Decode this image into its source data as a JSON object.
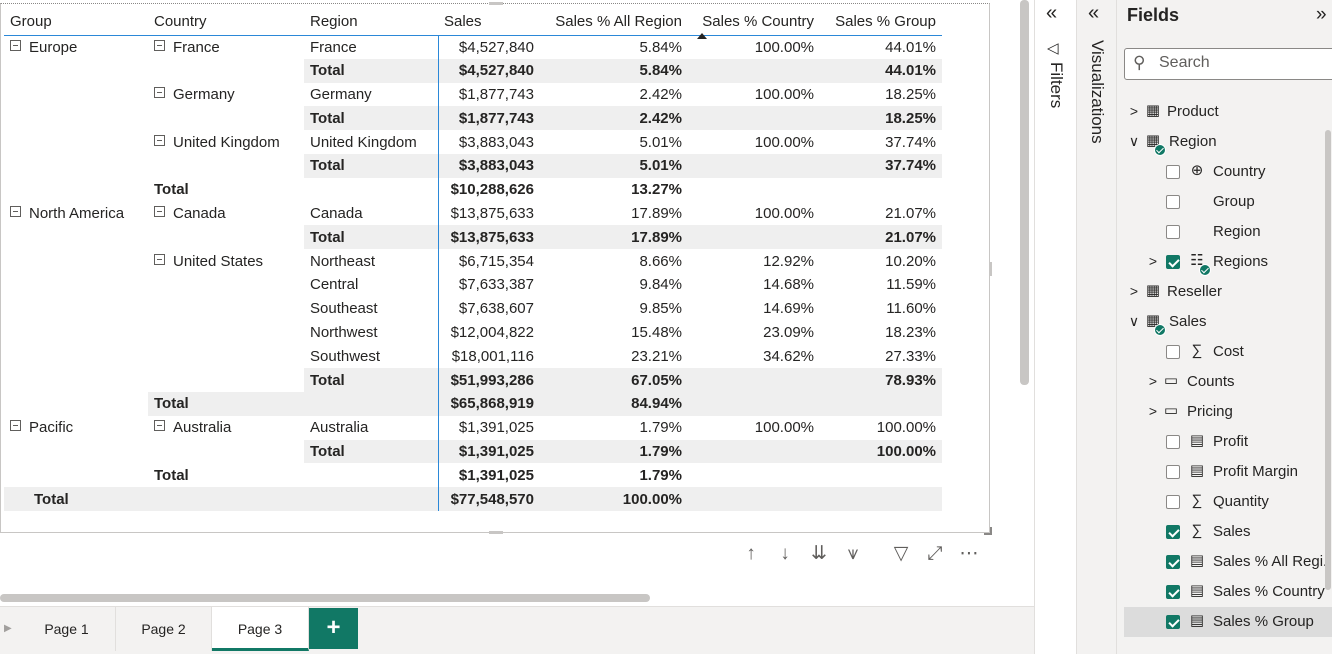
{
  "matrix": {
    "headers": {
      "group": "Group",
      "country": "Country",
      "region": "Region",
      "sales": "Sales",
      "pct_all": "Sales % All Region",
      "pct_country": "Sales % Country",
      "pct_group": "Sales % Group"
    },
    "rows": [
      {
        "group": "Europe",
        "country": "France",
        "region": "France",
        "sales": "$4,527,840",
        "pct_all": "5.84%",
        "pct_country": "100.00%",
        "pct_group": "44.01%"
      },
      {
        "region": "Total",
        "sales": "$4,527,840",
        "pct_all": "5.84%",
        "pct_country": "",
        "pct_group": "44.01%"
      },
      {
        "country": "Germany",
        "region": "Germany",
        "sales": "$1,877,743",
        "pct_all": "2.42%",
        "pct_country": "100.00%",
        "pct_group": "18.25%"
      },
      {
        "region": "Total",
        "sales": "$1,877,743",
        "pct_all": "2.42%",
        "pct_country": "",
        "pct_group": "18.25%"
      },
      {
        "country": "United Kingdom",
        "region": "United Kingdom",
        "sales": "$3,883,043",
        "pct_all": "5.01%",
        "pct_country": "100.00%",
        "pct_group": "37.74%"
      },
      {
        "region": "Total",
        "sales": "$3,883,043",
        "pct_all": "5.01%",
        "pct_country": "",
        "pct_group": "37.74%"
      },
      {
        "country": "Total",
        "sales": "$10,288,626",
        "pct_all": "13.27%",
        "pct_country": "",
        "pct_group": ""
      },
      {
        "group": "North America",
        "country": "Canada",
        "region": "Canada",
        "sales": "$13,875,633",
        "pct_all": "17.89%",
        "pct_country": "100.00%",
        "pct_group": "21.07%"
      },
      {
        "region": "Total",
        "sales": "$13,875,633",
        "pct_all": "17.89%",
        "pct_country": "",
        "pct_group": "21.07%"
      },
      {
        "country": "United States",
        "region": "Northeast",
        "sales": "$6,715,354",
        "pct_all": "8.66%",
        "pct_country": "12.92%",
        "pct_group": "10.20%"
      },
      {
        "region": "Central",
        "sales": "$7,633,387",
        "pct_all": "9.84%",
        "pct_country": "14.68%",
        "pct_group": "11.59%"
      },
      {
        "region": "Southeast",
        "sales": "$7,638,607",
        "pct_all": "9.85%",
        "pct_country": "14.69%",
        "pct_group": "11.60%"
      },
      {
        "region": "Northwest",
        "sales": "$12,004,822",
        "pct_all": "15.48%",
        "pct_country": "23.09%",
        "pct_group": "18.23%"
      },
      {
        "region": "Southwest",
        "sales": "$18,001,116",
        "pct_all": "23.21%",
        "pct_country": "34.62%",
        "pct_group": "27.33%"
      },
      {
        "region": "Total",
        "sales": "$51,993,286",
        "pct_all": "67.05%",
        "pct_country": "",
        "pct_group": "78.93%"
      },
      {
        "country": "Total",
        "sales": "$65,868,919",
        "pct_all": "84.94%",
        "pct_country": "",
        "pct_group": ""
      },
      {
        "group": "Pacific",
        "country": "Australia",
        "region": "Australia",
        "sales": "$1,391,025",
        "pct_all": "1.79%",
        "pct_country": "100.00%",
        "pct_group": "100.00%"
      },
      {
        "region": "Total",
        "sales": "$1,391,025",
        "pct_all": "1.79%",
        "pct_country": "",
        "pct_group": "100.00%"
      },
      {
        "country": "Total",
        "sales": "$1,391,025",
        "pct_all": "1.79%",
        "pct_country": "",
        "pct_group": ""
      },
      {
        "group": "Total",
        "sales": "$77,548,570",
        "pct_all": "100.00%",
        "pct_country": "",
        "pct_group": ""
      }
    ]
  },
  "visual_toolbar": {
    "icons": [
      "arrow-up-icon",
      "arrow-down-icon",
      "double-arrow-down-icon",
      "expand-hierarchy-icon",
      "filter-icon",
      "focus-mode-icon",
      "more-options-icon"
    ],
    "glyphs": [
      "↑",
      "↓",
      "⇊",
      "⩛",
      "▽",
      "⤢",
      "⋯"
    ]
  },
  "pages": {
    "tabs": [
      "Page 1",
      "Page 2",
      "Page 3"
    ],
    "active": "Page 3",
    "add_label": "+"
  },
  "filters_pane": {
    "label": "Filters",
    "collapse_glyph": "«"
  },
  "viz_pane": {
    "label": "Visualizations",
    "collapse_glyph": "«"
  },
  "fields_pane": {
    "title": "Fields",
    "expand_glyph": "»",
    "search_placeholder": "Search",
    "items": [
      {
        "label": "Product",
        "kind": "table",
        "chevron": ">",
        "level": 0,
        "checked": false
      },
      {
        "label": "Region",
        "kind": "table",
        "chevron": "∨",
        "level": 0,
        "checked": true
      },
      {
        "label": "Country",
        "kind": "globe",
        "level": 1,
        "checked": false
      },
      {
        "label": "Group",
        "kind": "none",
        "level": 1,
        "checked": false
      },
      {
        "label": "Region",
        "kind": "none",
        "level": 1,
        "checked": false
      },
      {
        "label": "Regions",
        "kind": "hierarchy",
        "chevron": ">",
        "level": 1,
        "checked": true
      },
      {
        "label": "Reseller",
        "kind": "table",
        "chevron": ">",
        "level": 0,
        "checked": false
      },
      {
        "label": "Sales",
        "kind": "table",
        "chevron": "∨",
        "level": 0,
        "checked": true
      },
      {
        "label": "Cost",
        "kind": "sigma",
        "level": 1,
        "checked": false
      },
      {
        "label": "Counts",
        "kind": "folder",
        "chevron": ">",
        "level": 1,
        "checked": false
      },
      {
        "label": "Pricing",
        "kind": "folder",
        "chevron": ">",
        "level": 1,
        "checked": false
      },
      {
        "label": "Profit",
        "kind": "calc",
        "level": 1,
        "checked": false
      },
      {
        "label": "Profit Margin",
        "kind": "calc",
        "level": 1,
        "checked": false
      },
      {
        "label": "Quantity",
        "kind": "sigma",
        "level": 1,
        "checked": false
      },
      {
        "label": "Sales",
        "kind": "sigma",
        "level": 1,
        "checked": true
      },
      {
        "label": "Sales % All Regi...",
        "kind": "calc",
        "level": 1,
        "checked": true
      },
      {
        "label": "Sales % Country",
        "kind": "calc",
        "level": 1,
        "checked": true
      },
      {
        "label": "Sales % Group",
        "kind": "calc",
        "level": 1,
        "checked": true,
        "selected": true
      }
    ]
  },
  "colors": {
    "accent": "#117865",
    "matrix_rule": "#2b88d8",
    "shade": "#efefef"
  }
}
